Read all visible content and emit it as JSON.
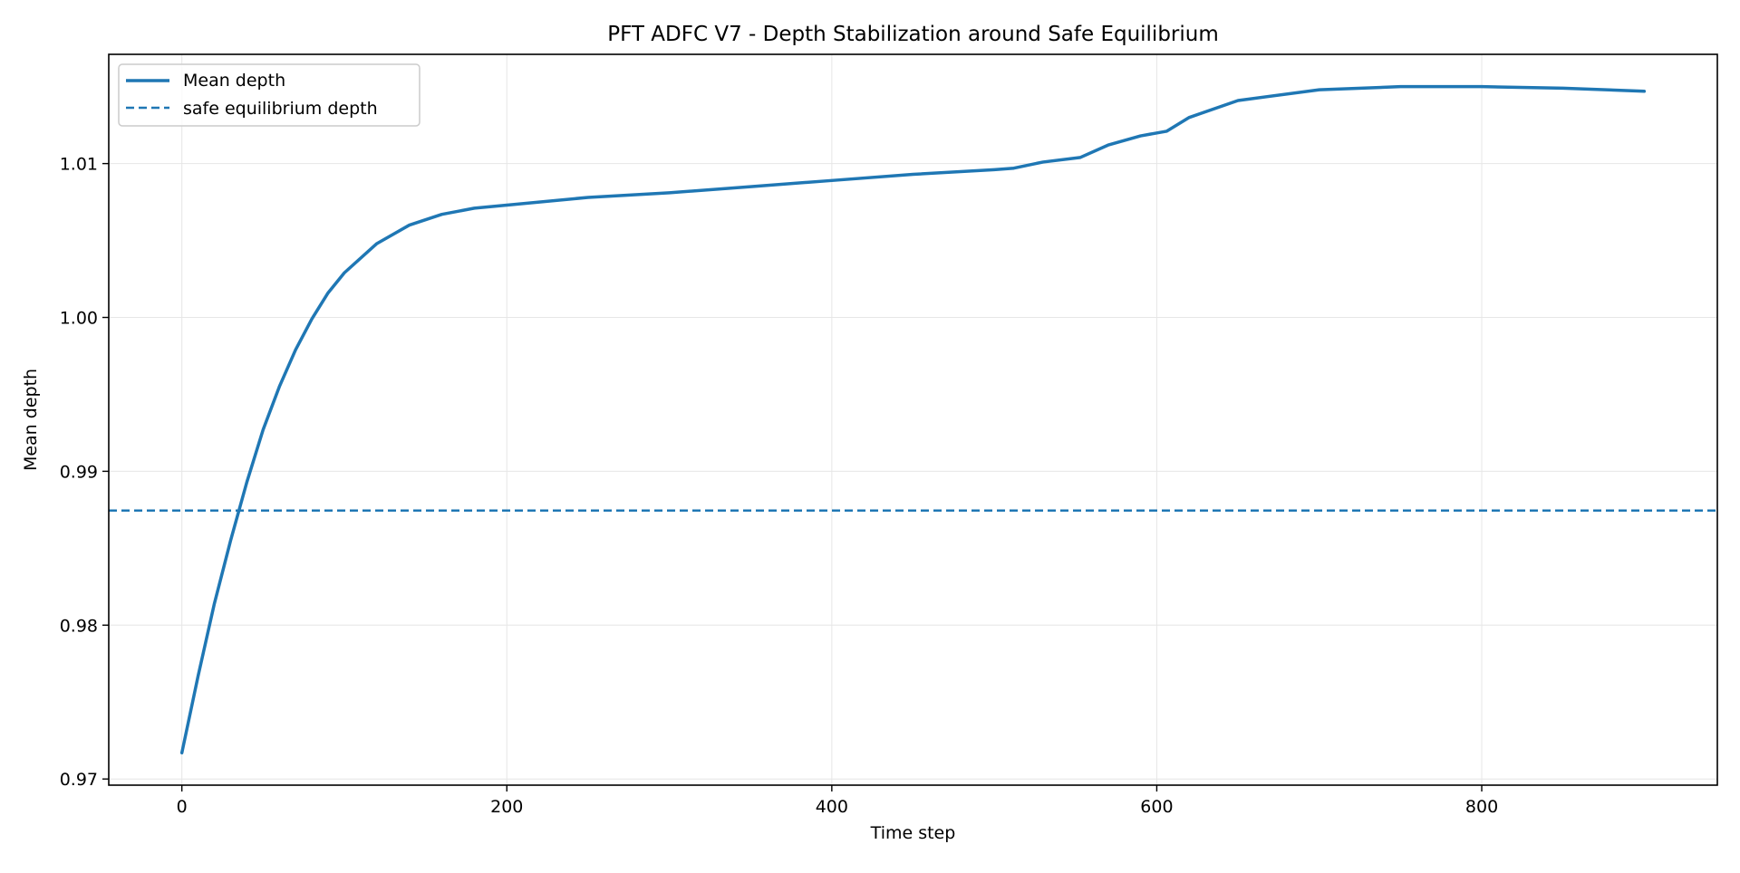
{
  "chart_data": {
    "type": "line",
    "title": "PFT ADFC V7 - Depth Stabilization around Safe Equilibrium",
    "xlabel": "Time step",
    "ylabel": "Mean depth",
    "xlim": [
      -45,
      945
    ],
    "ylim": [
      0.9696,
      1.0171
    ],
    "x_ticks": [
      0,
      200,
      400,
      600,
      800
    ],
    "y_ticks": [
      0.97,
      0.98,
      0.99,
      1.0,
      1.01
    ],
    "x_tick_labels": [
      "0",
      "200",
      "400",
      "600",
      "800"
    ],
    "y_tick_labels": [
      "0.97",
      "0.98",
      "0.99",
      "1.00",
      "1.01"
    ],
    "grid": true,
    "legend_position": "upper-left",
    "series": [
      {
        "name": "Mean depth",
        "style": "solid",
        "color": "#1f77b4",
        "x": [
          0,
          10,
          20,
          30,
          40,
          50,
          60,
          70,
          80,
          90,
          100,
          120,
          140,
          160,
          180,
          200,
          250,
          300,
          350,
          400,
          450,
          500,
          512,
          530,
          553,
          570,
          590,
          606,
          620,
          650,
          700,
          750,
          800,
          850,
          900
        ],
        "y": [
          0.9717,
          0.9767,
          0.9814,
          0.9855,
          0.9893,
          0.9927,
          0.9955,
          0.9979,
          0.9999,
          1.0016,
          1.0029,
          1.0048,
          1.006,
          1.0067,
          1.0071,
          1.0073,
          1.0078,
          1.0081,
          1.0085,
          1.0089,
          1.0093,
          1.0096,
          1.0097,
          1.0101,
          1.0104,
          1.0112,
          1.0118,
          1.0121,
          1.013,
          1.0141,
          1.0148,
          1.015,
          1.015,
          1.0149,
          1.0147
        ]
      },
      {
        "name": "safe equilibrium depth",
        "style": "dashed",
        "color": "#1f77b4",
        "y_constant": 0.98745
      }
    ]
  }
}
